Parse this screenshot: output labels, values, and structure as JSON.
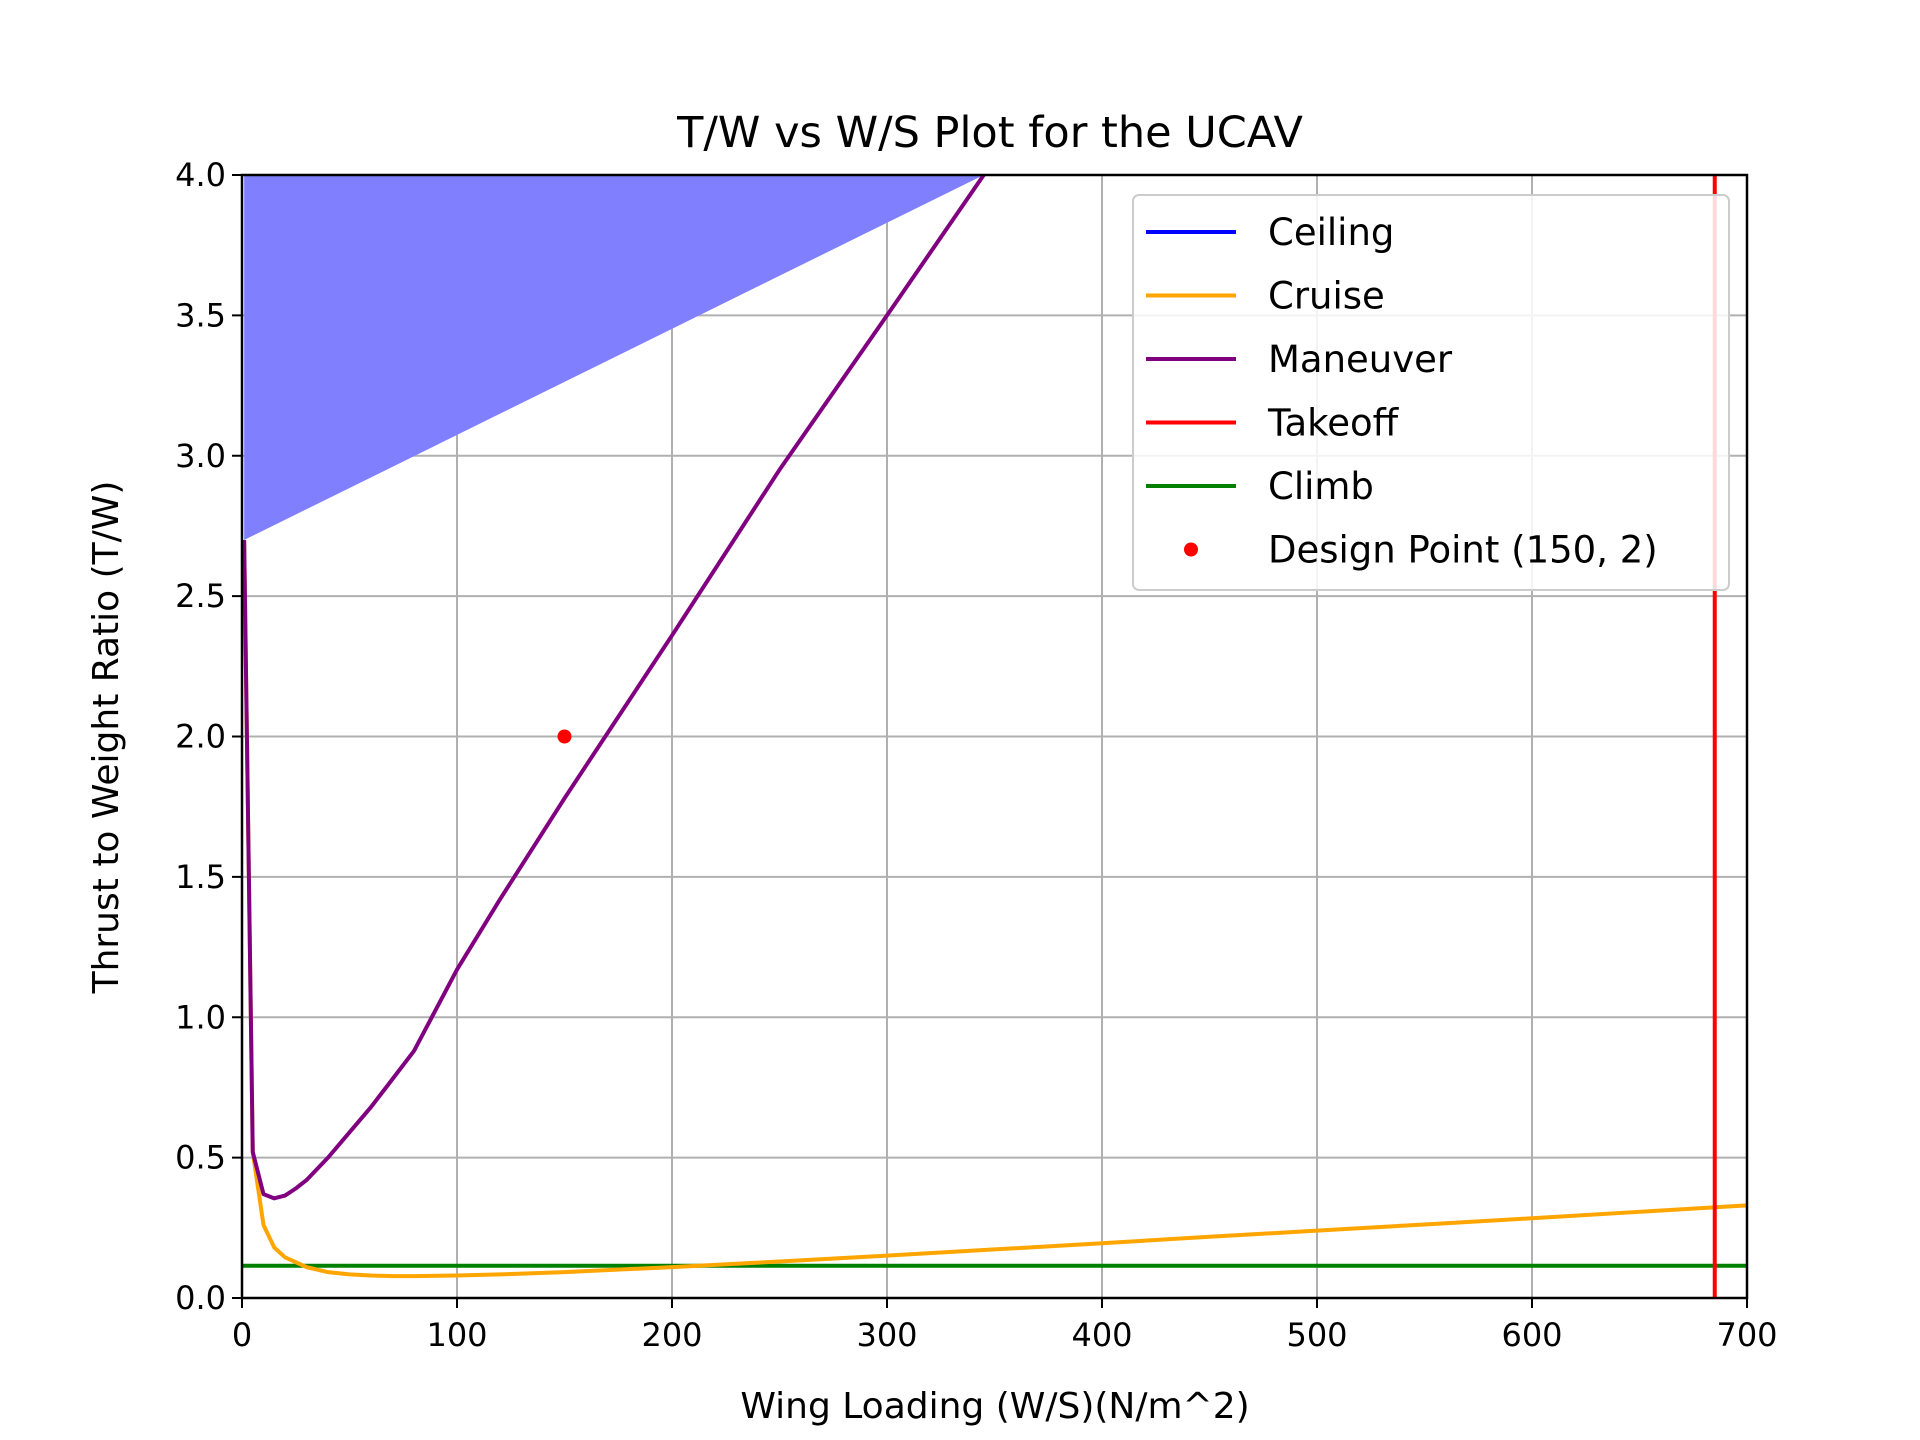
{
  "chart_data": {
    "type": "line",
    "title": "T/W vs W/S Plot for the UCAV",
    "xlabel": "Wing Loading (W/S)(N/m^2)",
    "ylabel": "Thrust to Weight Ratio (T/W)",
    "xlim": [
      0,
      700
    ],
    "ylim": [
      0,
      4.0
    ],
    "xticks": [
      0,
      100,
      200,
      300,
      400,
      500,
      600,
      700
    ],
    "xtick_labels": [
      "0",
      "100",
      "200",
      "300",
      "400",
      "500",
      "600",
      "700"
    ],
    "yticks": [
      0,
      0.5,
      1.0,
      1.5,
      2.0,
      2.5,
      3.0,
      3.5,
      4.0
    ],
    "ytick_labels": [
      "0.0",
      "0.5",
      "1.0",
      "1.5",
      "2.0",
      "2.5",
      "3.0",
      "3.5",
      "4.0"
    ],
    "grid": true,
    "legend_position": "top-right",
    "series": [
      {
        "name": "Ceiling",
        "color": "#0000ff",
        "x": [],
        "y": []
      },
      {
        "name": "Cruise",
        "color": "#ffa500",
        "x": [
          1,
          5,
          10,
          15,
          20,
          30,
          40,
          50,
          60,
          70,
          80,
          100,
          120,
          150,
          200,
          250,
          300,
          350,
          400,
          450,
          500,
          550,
          600,
          650,
          700
        ],
        "y": [
          2.7,
          0.52,
          0.26,
          0.18,
          0.145,
          0.11,
          0.092,
          0.084,
          0.08,
          0.078,
          0.078,
          0.08,
          0.084,
          0.092,
          0.11,
          0.13,
          0.151,
          0.173,
          0.195,
          0.218,
          0.24,
          0.262,
          0.284,
          0.307,
          0.33
        ]
      },
      {
        "name": "Maneuver",
        "color": "#800080",
        "x": [
          1,
          5,
          10,
          15,
          20,
          25,
          30,
          40,
          50,
          60,
          80,
          100,
          120,
          150,
          200,
          250,
          300,
          345
        ],
        "y": [
          2.7,
          0.52,
          0.37,
          0.355,
          0.365,
          0.39,
          0.42,
          0.5,
          0.59,
          0.68,
          0.88,
          1.17,
          1.42,
          1.78,
          2.36,
          2.95,
          3.5,
          4.0
        ]
      },
      {
        "name": "Takeoff",
        "color": "#ff0000",
        "x": [
          685,
          685
        ],
        "y": [
          0,
          4.0
        ]
      },
      {
        "name": "Climb",
        "color": "#008000",
        "x": [
          0,
          700
        ],
        "y": [
          0.115,
          0.115
        ]
      }
    ],
    "feasible_region": {
      "color": "#8080ff",
      "x": [
        1,
        1,
        345
      ],
      "y": [
        2.7,
        4.0,
        4.0
      ]
    },
    "design_point": {
      "name": "Design Point (150, 2)",
      "x": 150,
      "y": 2.0,
      "color": "#ff0000"
    }
  }
}
